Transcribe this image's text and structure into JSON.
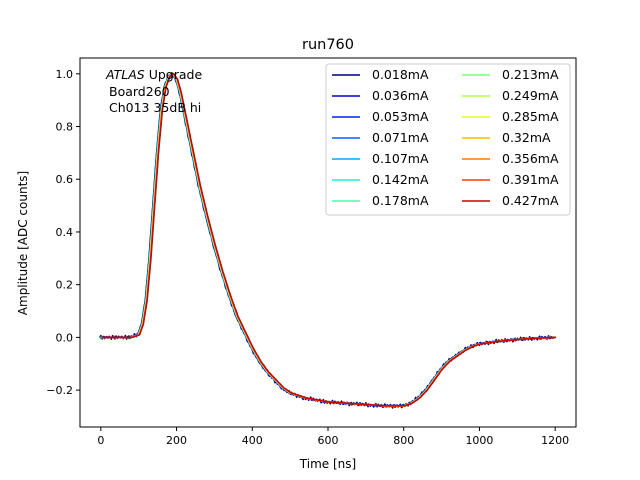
{
  "chart_data": {
    "type": "line",
    "title": "run760",
    "xlabel": "Time [ns]",
    "ylabel": "Amplitude [ADC counts]",
    "xlim": [
      -55,
      1255
    ],
    "ylim": [
      -0.34,
      1.06
    ],
    "xticks": [
      0,
      200,
      400,
      600,
      800,
      1000,
      1200
    ],
    "yticks": [
      -0.2,
      0.0,
      0.2,
      0.4,
      0.6,
      0.8,
      1.0
    ],
    "xtick_labels": [
      "0",
      "200",
      "400",
      "600",
      "800",
      "1000",
      "1200"
    ],
    "ytick_labels": [
      "−0.2",
      "0.0",
      "0.2",
      "0.4",
      "0.6",
      "0.8",
      "1.0"
    ],
    "annotation": {
      "line1_italic": "ATLAS",
      "line1_rest": " Upgrade",
      "line2": "Board260",
      "line3": "Ch013 35dB hi"
    },
    "legend_position": "upper right",
    "legend_columns": 2,
    "pulse_shape": {
      "x": [
        0,
        40,
        80,
        100,
        110,
        120,
        130,
        140,
        150,
        160,
        170,
        180,
        190,
        200,
        210,
        220,
        230,
        240,
        250,
        260,
        280,
        300,
        320,
        340,
        360,
        380,
        400,
        420,
        440,
        460,
        480,
        500,
        520,
        540,
        560,
        600,
        650,
        700,
        750,
        800,
        820,
        840,
        860,
        880,
        900,
        920,
        940,
        960,
        980,
        1000,
        1050,
        1100,
        1150,
        1200
      ],
      "y": [
        0.0,
        0.0,
        0.0,
        0.01,
        0.05,
        0.14,
        0.3,
        0.5,
        0.7,
        0.86,
        0.95,
        0.99,
        1.0,
        0.98,
        0.93,
        0.86,
        0.79,
        0.72,
        0.65,
        0.58,
        0.46,
        0.35,
        0.25,
        0.16,
        0.08,
        0.02,
        -0.04,
        -0.09,
        -0.13,
        -0.16,
        -0.19,
        -0.21,
        -0.22,
        -0.23,
        -0.235,
        -0.245,
        -0.25,
        -0.255,
        -0.26,
        -0.26,
        -0.25,
        -0.23,
        -0.2,
        -0.16,
        -0.12,
        -0.09,
        -0.07,
        -0.05,
        -0.035,
        -0.025,
        -0.015,
        -0.008,
        -0.003,
        0.0
      ]
    },
    "series": [
      {
        "name": "0.018mA",
        "color": "#00007f"
      },
      {
        "name": "0.036mA",
        "color": "#0000c8"
      },
      {
        "name": "0.053mA",
        "color": "#0020ff"
      },
      {
        "name": "0.071mA",
        "color": "#0064ff"
      },
      {
        "name": "0.107mA",
        "color": "#00a8ff"
      },
      {
        "name": "0.142mA",
        "color": "#1cf0db"
      },
      {
        "name": "0.178mA",
        "color": "#4affad"
      },
      {
        "name": "0.213mA",
        "color": "#7dff7a"
      },
      {
        "name": "0.249mA",
        "color": "#adff4a"
      },
      {
        "name": "0.285mA",
        "color": "#e4ff13"
      },
      {
        "name": "0.32mA",
        "color": "#ffb900"
      },
      {
        "name": "0.356mA",
        "color": "#ff7a00"
      },
      {
        "name": "0.391mA",
        "color": "#ff3b00"
      },
      {
        "name": "0.427mA",
        "color": "#c80000"
      }
    ]
  }
}
